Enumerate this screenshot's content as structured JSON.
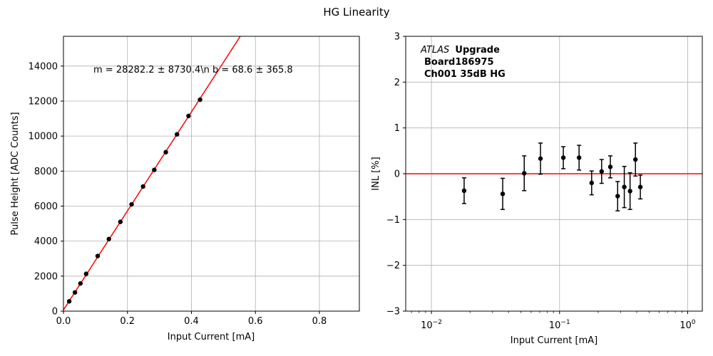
{
  "figure_title": "HG Linearity",
  "chart_data": [
    {
      "type": "scatter",
      "xlabel": "Input Current [mA]",
      "ylabel": "Pulse Height [ADC Counts]",
      "xlim": [
        0,
        0.925
      ],
      "ylim": [
        0,
        15700
      ],
      "x_ticks": [
        0,
        0.2,
        0.4,
        0.6,
        0.8
      ],
      "x_tick_labels": [
        "0.0",
        "0.2",
        "0.4",
        "0.6",
        "0.8"
      ],
      "y_ticks": [
        0,
        2000,
        4000,
        6000,
        8000,
        10000,
        12000,
        14000
      ],
      "y_tick_labels": [
        "0",
        "2000",
        "4000",
        "6000",
        "8000",
        "10000",
        "12000",
        "14000"
      ],
      "grid": true,
      "annotation": "m = 28282.2 ± 8730.4\\n b = 68.6 ± 365.8",
      "fit": {
        "slope": 28282.2,
        "intercept": 68.6,
        "color": "#ff0000"
      },
      "points": [
        {
          "x": 0.018,
          "y": 560
        },
        {
          "x": 0.036,
          "y": 1070
        },
        {
          "x": 0.053,
          "y": 1580
        },
        {
          "x": 0.071,
          "y": 2130
        },
        {
          "x": 0.107,
          "y": 3150
        },
        {
          "x": 0.142,
          "y": 4120
        },
        {
          "x": 0.178,
          "y": 5100
        },
        {
          "x": 0.213,
          "y": 6100
        },
        {
          "x": 0.249,
          "y": 7120
        },
        {
          "x": 0.284,
          "y": 8070
        },
        {
          "x": 0.32,
          "y": 9080
        },
        {
          "x": 0.355,
          "y": 10100
        },
        {
          "x": 0.391,
          "y": 11150
        },
        {
          "x": 0.427,
          "y": 12080
        }
      ]
    },
    {
      "type": "scatter",
      "xlabel": "Input Current [mA]",
      "ylabel": "INL [%]",
      "xscale": "log",
      "xlim": [
        0.0063,
        1.3
      ],
      "ylim": [
        -3,
        3
      ],
      "x_ticks": [
        0.01,
        0.1,
        1
      ],
      "y_ticks": [
        -3,
        -2,
        -1,
        0,
        1,
        2,
        3
      ],
      "y_tick_labels": [
        "−3",
        "−2",
        "−1",
        "0",
        "1",
        "2",
        "3"
      ],
      "grid": true,
      "reference_line": {
        "y": 0,
        "color": "#ff0000"
      },
      "text": {
        "atlas": "ATLAS",
        "upgrade": "Upgrade",
        "board": "Board186975",
        "channel": "Ch001 35dB HG"
      },
      "points": [
        {
          "x": 0.018,
          "y": -0.37,
          "err": 0.28
        },
        {
          "x": 0.036,
          "y": -0.44,
          "err": 0.34
        },
        {
          "x": 0.053,
          "y": 0.01,
          "err": 0.38
        },
        {
          "x": 0.071,
          "y": 0.33,
          "err": 0.34
        },
        {
          "x": 0.107,
          "y": 0.35,
          "err": 0.24
        },
        {
          "x": 0.142,
          "y": 0.35,
          "err": 0.27
        },
        {
          "x": 0.178,
          "y": -0.2,
          "err": 0.26
        },
        {
          "x": 0.213,
          "y": 0.05,
          "err": 0.26
        },
        {
          "x": 0.249,
          "y": 0.15,
          "err": 0.24
        },
        {
          "x": 0.284,
          "y": -0.49,
          "err": 0.32
        },
        {
          "x": 0.32,
          "y": -0.29,
          "err": 0.45
        },
        {
          "x": 0.355,
          "y": -0.38,
          "err": 0.4
        },
        {
          "x": 0.391,
          "y": 0.31,
          "err": 0.36
        },
        {
          "x": 0.427,
          "y": -0.29,
          "err": 0.26
        }
      ]
    }
  ]
}
